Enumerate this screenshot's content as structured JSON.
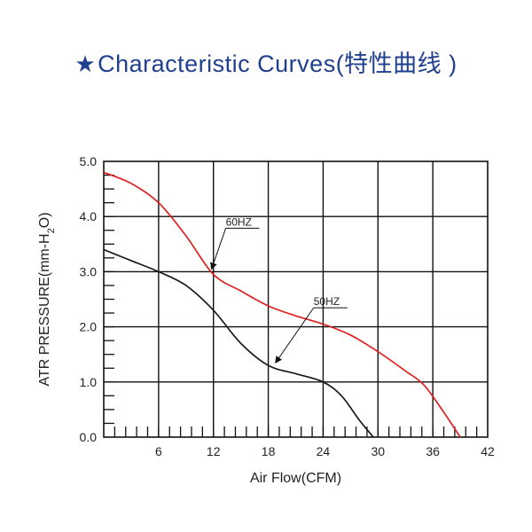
{
  "title": {
    "star": "★",
    "text": "Characteristic Curves(特性曲线 )"
  },
  "chart_data": {
    "type": "line",
    "xlabel": "Air Flow(CFM)",
    "ylabel": "ATR PRESSURE(mm-H2O)",
    "xlim": [
      0,
      42
    ],
    "ylim": [
      0,
      5.0
    ],
    "xticks": [
      "6",
      "12",
      "18",
      "24",
      "30",
      "36",
      "42"
    ],
    "xtick_values": [
      6,
      12,
      18,
      24,
      30,
      36,
      42
    ],
    "yticks": [
      "0.0",
      "1.0",
      "2.0",
      "3.0",
      "4.0",
      "5.0"
    ],
    "ytick_values": [
      0,
      1,
      2,
      3,
      4,
      5
    ],
    "grid": true,
    "series": [
      {
        "name": "60HZ",
        "color": "#e02020",
        "x": [
          0,
          3,
          6,
          9,
          12,
          15,
          18,
          21,
          24,
          27,
          30,
          33,
          35,
          37,
          39
        ],
        "y": [
          4.8,
          4.6,
          4.25,
          3.65,
          2.95,
          2.65,
          2.38,
          2.2,
          2.05,
          1.85,
          1.55,
          1.2,
          0.95,
          0.5,
          0.0
        ]
      },
      {
        "name": "50HZ",
        "color": "#1a1a1a",
        "x": [
          0,
          3,
          6,
          9,
          12,
          15,
          18,
          21,
          24,
          26,
          28,
          29.5
        ],
        "y": [
          3.4,
          3.2,
          3.0,
          2.75,
          2.3,
          1.7,
          1.3,
          1.15,
          1.0,
          0.75,
          0.3,
          0.0
        ]
      }
    ],
    "annotations": [
      {
        "text": "60HZ",
        "series": "60HZ",
        "arrow_to": [
          11.6,
          3.0
        ]
      },
      {
        "text": "50HZ",
        "series": "50HZ",
        "arrow_to": [
          18.6,
          1.3
        ]
      }
    ]
  }
}
